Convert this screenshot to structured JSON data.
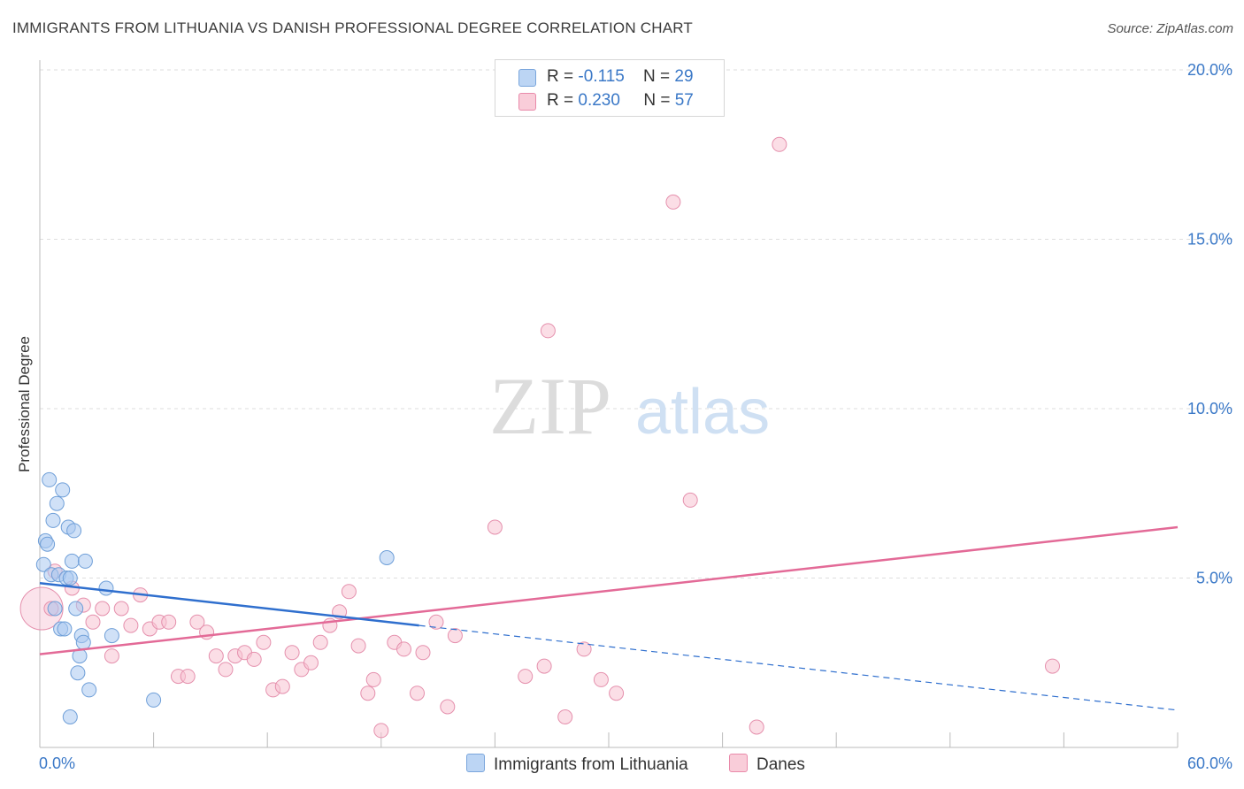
{
  "header": {
    "title": "IMMIGRANTS FROM LITHUANIA VS DANISH PROFESSIONAL DEGREE CORRELATION CHART",
    "source": "Source: ZipAtlas.com"
  },
  "watermark": {
    "zip": "ZIP",
    "atlas": "atlas"
  },
  "legend": {
    "rows": [
      {
        "r_label": "R =",
        "r_value": "-0.115",
        "n_label": "N =",
        "n_value": "29",
        "color": "#a9c8f0",
        "border": "#7aa6dc"
      },
      {
        "r_label": "R =",
        "r_value": "0.230",
        "n_label": "N =",
        "n_value": "57",
        "color": "#f7c2d2",
        "border": "#e98aaa"
      }
    ]
  },
  "bottom_legend": {
    "items": [
      {
        "label": "Immigrants from Lithuania",
        "color": "#bcd5f4",
        "border": "#7aa6dc"
      },
      {
        "label": "Danes",
        "color": "#f9cdd9",
        "border": "#e98aaa"
      }
    ]
  },
  "chart_data": {
    "type": "scatter",
    "title": "IMMIGRANTS FROM LITHUANIA VS DANISH PROFESSIONAL DEGREE CORRELATION CHART",
    "xlabel": "",
    "ylabel": "Professional Degree",
    "xlim": [
      0,
      60
    ],
    "ylim": [
      0,
      20
    ],
    "x_tick_labels": [
      "0.0%",
      "60.0%"
    ],
    "y_ticks": [
      5,
      10,
      15,
      20
    ],
    "y_tick_labels": [
      "5.0%",
      "10.0%",
      "15.0%",
      "20.0%"
    ],
    "grid": true,
    "series": [
      {
        "name": "Immigrants from Lithuania",
        "color": "#a9c8f0",
        "stroke": "#6f9fd8",
        "line_color": "#2f6fce",
        "trend": {
          "x0": 0.0,
          "y0": 4.85,
          "x1": 20.0,
          "y1": 3.6,
          "x_dash_end": 60.0,
          "y_dash_end": 1.1
        },
        "points": [
          [
            0.2,
            5.4
          ],
          [
            0.3,
            6.1
          ],
          [
            0.4,
            6.0
          ],
          [
            0.5,
            7.9
          ],
          [
            0.6,
            5.1
          ],
          [
            0.7,
            6.7
          ],
          [
            0.8,
            4.1
          ],
          [
            0.9,
            7.2
          ],
          [
            1.0,
            5.1
          ],
          [
            1.1,
            3.5
          ],
          [
            1.2,
            7.6
          ],
          [
            1.3,
            3.5
          ],
          [
            1.4,
            5.0
          ],
          [
            1.5,
            6.5
          ],
          [
            1.6,
            5.0
          ],
          [
            1.6,
            0.9
          ],
          [
            1.7,
            5.5
          ],
          [
            1.8,
            6.4
          ],
          [
            1.9,
            4.1
          ],
          [
            2.0,
            2.2
          ],
          [
            2.1,
            2.7
          ],
          [
            2.2,
            3.3
          ],
          [
            2.3,
            3.1
          ],
          [
            2.4,
            5.5
          ],
          [
            2.6,
            1.7
          ],
          [
            3.5,
            4.7
          ],
          [
            3.8,
            3.3
          ],
          [
            6.0,
            1.4
          ],
          [
            18.3,
            5.6
          ]
        ]
      },
      {
        "name": "Danes",
        "color": "#f7c2d2",
        "stroke": "#e590ad",
        "line_color": "#e36a97",
        "trend": {
          "x0": 0.0,
          "y0": 2.75,
          "x1": 60.0,
          "y1": 6.5
        },
        "points": [
          [
            0.1,
            4.1
          ],
          [
            0.6,
            4.1
          ],
          [
            0.8,
            5.2
          ],
          [
            1.7,
            4.7
          ],
          [
            2.3,
            4.2
          ],
          [
            2.8,
            3.7
          ],
          [
            3.3,
            4.1
          ],
          [
            3.8,
            2.7
          ],
          [
            4.3,
            4.1
          ],
          [
            4.8,
            3.6
          ],
          [
            5.3,
            4.5
          ],
          [
            5.8,
            3.5
          ],
          [
            6.3,
            3.7
          ],
          [
            6.8,
            3.7
          ],
          [
            7.3,
            2.1
          ],
          [
            7.8,
            2.1
          ],
          [
            8.3,
            3.7
          ],
          [
            8.8,
            3.4
          ],
          [
            9.3,
            2.7
          ],
          [
            9.8,
            2.3
          ],
          [
            10.3,
            2.7
          ],
          [
            10.8,
            2.8
          ],
          [
            11.3,
            2.6
          ],
          [
            11.8,
            3.1
          ],
          [
            12.3,
            1.7
          ],
          [
            12.8,
            1.8
          ],
          [
            13.3,
            2.8
          ],
          [
            13.8,
            2.3
          ],
          [
            14.3,
            2.5
          ],
          [
            14.8,
            3.1
          ],
          [
            15.3,
            3.6
          ],
          [
            15.8,
            4.0
          ],
          [
            16.3,
            4.6
          ],
          [
            16.8,
            3.0
          ],
          [
            17.3,
            1.6
          ],
          [
            17.6,
            2.0
          ],
          [
            18.0,
            0.5
          ],
          [
            18.7,
            3.1
          ],
          [
            19.2,
            2.9
          ],
          [
            19.9,
            1.6
          ],
          [
            20.2,
            2.8
          ],
          [
            20.9,
            3.7
          ],
          [
            21.5,
            1.2
          ],
          [
            21.9,
            3.3
          ],
          [
            24.0,
            6.5
          ],
          [
            25.6,
            2.1
          ],
          [
            26.6,
            2.4
          ],
          [
            26.8,
            12.3
          ],
          [
            27.7,
            0.9
          ],
          [
            28.7,
            2.9
          ],
          [
            29.6,
            2.0
          ],
          [
            30.4,
            1.6
          ],
          [
            33.4,
            16.1
          ],
          [
            34.3,
            7.3
          ],
          [
            37.8,
            0.6
          ],
          [
            39.0,
            17.8
          ],
          [
            53.4,
            2.4
          ]
        ]
      }
    ]
  }
}
